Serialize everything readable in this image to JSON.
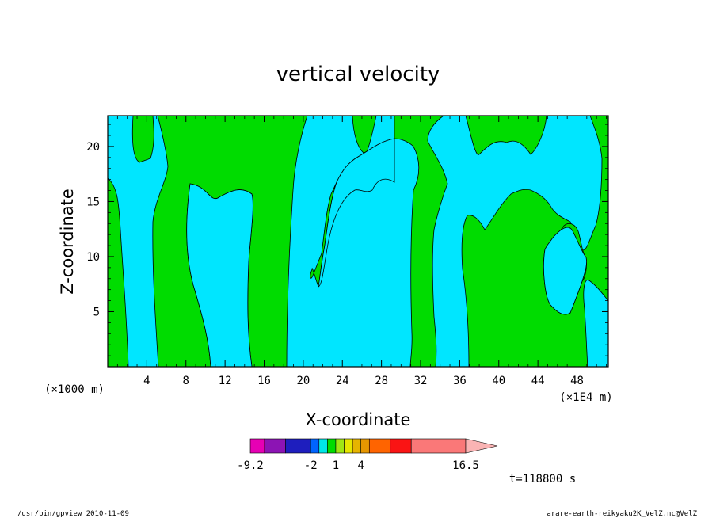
{
  "chart_data": {
    "type": "heatmap",
    "title": "vertical velocity",
    "xlabel": "X-coordinate",
    "ylabel": "Z-coordinate",
    "x_multiplier": "(×1000 m)",
    "x_unit_note": "(×1E4 m)",
    "xlim": [
      0,
      51.2
    ],
    "ylim": [
      0,
      22.8
    ],
    "x_ticks": [
      4,
      8,
      12,
      16,
      20,
      24,
      28,
      32,
      36,
      40,
      44,
      48
    ],
    "y_ticks": [
      5,
      10,
      15,
      20
    ],
    "time_label": "t=118800 s",
    "colorbar": {
      "levels": [
        -9.2,
        -7.5,
        -5,
        -2,
        -1,
        0,
        1,
        2,
        3,
        4,
        5,
        7.5,
        10,
        16.5
      ],
      "colors": [
        "#e600b4",
        "#8c14b4",
        "#1e1ebe",
        "#0064ff",
        "#00e6e6",
        "#00dc00",
        "#a0e614",
        "#e6e600",
        "#e6b400",
        "#e69600",
        "#ff6400",
        "#fa1414",
        "#fa7878"
      ],
      "labels": [
        "-9.2",
        "-2",
        "1",
        "4",
        "16.5"
      ],
      "overflow_color": "#fab4b4"
    },
    "fill_colors": {
      "negative": "#00e6ff",
      "positive": "#00dc00"
    }
  },
  "footer": {
    "left": "/usr/bin/gpview   2010-11-09",
    "right": "arare-earth-reikyaku2K_VelZ.nc@VelZ"
  }
}
